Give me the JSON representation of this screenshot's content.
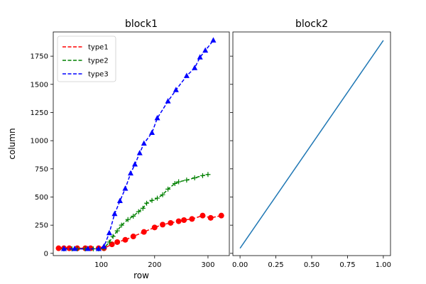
{
  "chart_data": [
    {
      "type": "line",
      "title": "block1",
      "xlabel": "row",
      "ylabel": "column",
      "xlim": [
        10,
        340
      ],
      "ylim": [
        -20,
        1965
      ],
      "xticks": [
        100,
        200,
        300
      ],
      "yticks": [
        0,
        250,
        500,
        750,
        1000,
        1250,
        1500,
        1750
      ],
      "grid": false,
      "legend_position": "top-left",
      "series": [
        {
          "name": "type1",
          "color": "#ff0000",
          "line_style": "dashed",
          "marker": "circle",
          "points": [
            [
              20,
              45
            ],
            [
              30,
              45
            ],
            [
              40,
              45
            ],
            [
              55,
              45
            ],
            [
              70,
              45
            ],
            [
              80,
              45
            ],
            [
              95,
              45
            ],
            [
              105,
              45
            ],
            [
              120,
              80
            ],
            [
              130,
              100
            ],
            [
              145,
              120
            ],
            [
              160,
              150
            ],
            [
              180,
              190
            ],
            [
              200,
              230
            ],
            [
              215,
              255
            ],
            [
              230,
              270
            ],
            [
              245,
              285
            ],
            [
              255,
              295
            ],
            [
              270,
              305
            ],
            [
              290,
              335
            ],
            [
              305,
              315
            ],
            [
              325,
              335
            ]
          ]
        },
        {
          "name": "type2",
          "color": "#008000",
          "line_style": "dashed",
          "marker": "plus",
          "points": [
            [
              30,
              40
            ],
            [
              45,
              40
            ],
            [
              55,
              40
            ],
            [
              70,
              40
            ],
            [
              85,
              40
            ],
            [
              95,
              40
            ],
            [
              105,
              45
            ],
            [
              115,
              100
            ],
            [
              122,
              150
            ],
            [
              130,
              200
            ],
            [
              138,
              250
            ],
            [
              150,
              300
            ],
            [
              160,
              330
            ],
            [
              170,
              370
            ],
            [
              178,
              400
            ],
            [
              185,
              445
            ],
            [
              195,
              470
            ],
            [
              205,
              490
            ],
            [
              215,
              520
            ],
            [
              225,
              570
            ],
            [
              238,
              620
            ],
            [
              245,
              635
            ],
            [
              260,
              650
            ],
            [
              275,
              670
            ],
            [
              290,
              690
            ],
            [
              300,
              700
            ]
          ]
        },
        {
          "name": "type3",
          "color": "#0000ff",
          "line_style": "dashed",
          "marker": "triangle",
          "points": [
            [
              30,
              40
            ],
            [
              50,
              40
            ],
            [
              75,
              40
            ],
            [
              95,
              40
            ],
            [
              105,
              60
            ],
            [
              115,
              180
            ],
            [
              125,
              350
            ],
            [
              135,
              465
            ],
            [
              145,
              575
            ],
            [
              155,
              710
            ],
            [
              163,
              790
            ],
            [
              172,
              890
            ],
            [
              180,
              975
            ],
            [
              195,
              1070
            ],
            [
              205,
              1200
            ],
            [
              225,
              1350
            ],
            [
              240,
              1450
            ],
            [
              260,
              1575
            ],
            [
              275,
              1645
            ],
            [
              285,
              1740
            ],
            [
              295,
              1800
            ],
            [
              310,
              1890
            ]
          ]
        }
      ]
    },
    {
      "type": "line",
      "title": "block2",
      "xlabel": "",
      "ylabel": "",
      "xlim": [
        -0.05,
        1.05
      ],
      "ylim": [
        -20,
        1965
      ],
      "xticks": [
        0.0,
        0.25,
        0.5,
        0.75,
        1.0
      ],
      "xtick_labels": [
        "0.00",
        "0.25",
        "0.50",
        "0.75",
        "1.00"
      ],
      "yticks": [
        0,
        250,
        500,
        750,
        1000,
        1250,
        1500,
        1750
      ],
      "ytick_labels_shown": false,
      "grid": false,
      "series": [
        {
          "color": "#1f77b4",
          "line_style": "solid",
          "marker": "none",
          "points": [
            [
              0.0,
              45
            ],
            [
              1.0,
              1890
            ]
          ]
        }
      ]
    }
  ]
}
